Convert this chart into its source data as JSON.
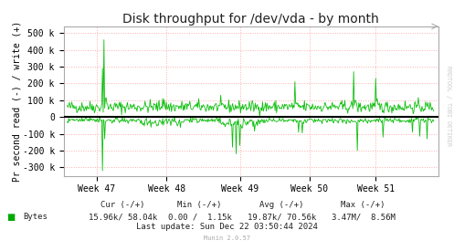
{
  "title": "Disk throughput for /dev/vda - by month",
  "ylabel": "Pr second read (-) / write (+)",
  "xlabel_ticks": [
    "Week 47",
    "Week 48",
    "Week 49",
    "Week 50",
    "Week 51"
  ],
  "ylim": [
    -350000,
    540000
  ],
  "yticks": [
    -300000,
    -200000,
    -100000,
    0,
    100000,
    200000,
    300000,
    400000,
    500000
  ],
  "ytick_labels": [
    "-300 k",
    "-200 k",
    "-100 k",
    "0",
    "100 k",
    "200 k",
    "300 k",
    "400 k",
    "500 k"
  ],
  "line_color": "#00bb00",
  "zero_line_color": "#000000",
  "grid_color": "#ff8888",
  "background_color": "#ffffff",
  "plot_bg_color": "#ffffff",
  "legend_label": "Bytes",
  "legend_color": "#00aa00",
  "last_update": "Last update: Sun Dec 22 03:50:44 2024",
  "munin_text": "Munin 2.0.57",
  "watermark": "RRDTOOL / TOBI OETIKER",
  "n_points": 500,
  "seed": 42,
  "base_write": 60000,
  "base_read": -20000,
  "noise_write": 18000,
  "noise_read": 14000,
  "week_xtick_positions": [
    40,
    135,
    235,
    330,
    420
  ],
  "title_fontsize": 10,
  "axis_fontsize": 7,
  "tick_fontsize": 7,
  "stats_fontsize": 6.5,
  "title_font": "DejaVu Sans",
  "mono_font": "DejaVu Sans Mono",
  "stats_col1_header": "Cur (-/+)",
  "stats_col2_header": "Min (-/+)",
  "stats_col3_header": "Avg (-/+)",
  "stats_col4_header": "Max (-/+)",
  "stats_bytes_cur": "15.96k/ 58.04k",
  "stats_bytes_min": "0.00 /  1.15k",
  "stats_bytes_avg": "19.87k/ 70.56k",
  "stats_bytes_max": "3.47M/  8.56M"
}
